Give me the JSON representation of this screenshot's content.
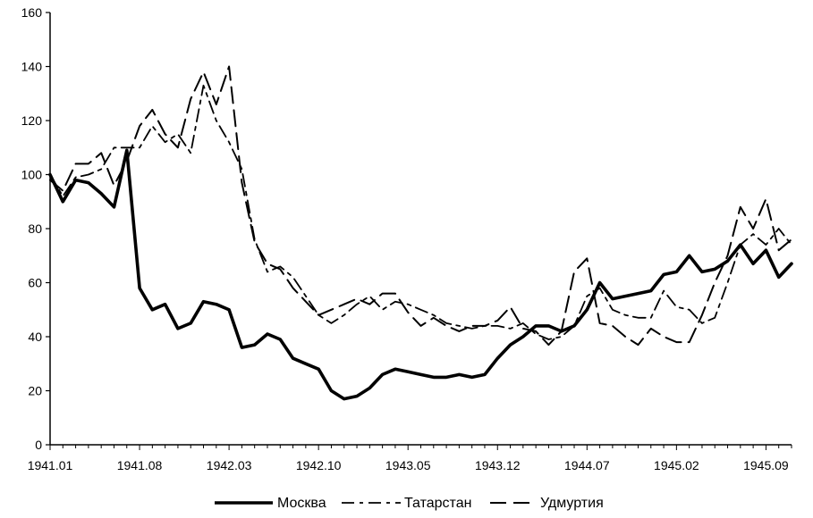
{
  "chart_data": {
    "type": "line",
    "title": "",
    "xlabel": "",
    "ylabel": "",
    "ylim": [
      0,
      160
    ],
    "yticks": [
      0,
      20,
      40,
      60,
      80,
      100,
      120,
      140,
      160
    ],
    "x": [
      "1941.01",
      "1941.02",
      "1941.03",
      "1941.04",
      "1941.05",
      "1941.06",
      "1941.07",
      "1941.08",
      "1941.09",
      "1941.10",
      "1941.11",
      "1941.12",
      "1942.01",
      "1942.02",
      "1942.03",
      "1942.04",
      "1942.05",
      "1942.06",
      "1942.07",
      "1942.08",
      "1942.09",
      "1942.10",
      "1942.11",
      "1942.12",
      "1943.01",
      "1943.02",
      "1943.03",
      "1943.04",
      "1943.05",
      "1943.06",
      "1943.07",
      "1943.08",
      "1943.09",
      "1943.10",
      "1943.11",
      "1943.12",
      "1944.01",
      "1944.02",
      "1944.03",
      "1944.04",
      "1944.05",
      "1944.06",
      "1944.07",
      "1944.08",
      "1944.09",
      "1944.10",
      "1944.11",
      "1944.12",
      "1945.01",
      "1945.02",
      "1945.03",
      "1945.04",
      "1945.05",
      "1945.06",
      "1945.07",
      "1945.08",
      "1945.09",
      "1945.10",
      "1945.11"
    ],
    "x_tick_labels": [
      "1941.01",
      "1941.08",
      "1942.03",
      "1942.10",
      "1943.05",
      "1943.12",
      "1944.07",
      "1945.02",
      "1945.09"
    ],
    "series": [
      {
        "name": "Москва",
        "style": "solid",
        "values": [
          100,
          90,
          98,
          97,
          93,
          88,
          109,
          58,
          50,
          52,
          43,
          45,
          53,
          52,
          50,
          36,
          37,
          41,
          39,
          32,
          30,
          28,
          20,
          17,
          18,
          21,
          26,
          28,
          27,
          26,
          25,
          25,
          26,
          25,
          26,
          32,
          37,
          40,
          44,
          44,
          42,
          44,
          50,
          60,
          54,
          55,
          56,
          57,
          63,
          64,
          70,
          64,
          65,
          68,
          74,
          67,
          72,
          62,
          67
        ]
      },
      {
        "name": "Татарстан",
        "style": "dash-dot",
        "values": [
          100,
          92,
          99,
          100,
          102,
          110,
          110,
          110,
          118,
          112,
          115,
          108,
          133,
          120,
          112,
          102,
          76,
          64,
          66,
          62,
          55,
          48,
          45,
          48,
          52,
          55,
          50,
          53,
          52,
          50,
          48,
          45,
          44,
          43,
          44,
          44,
          43,
          45,
          41,
          39,
          40,
          44,
          55,
          58,
          50,
          48,
          47,
          47,
          57,
          51,
          50,
          45,
          47,
          60,
          74,
          78,
          74,
          80,
          74
        ]
      },
      {
        "name": "Удмуртия",
        "style": "dashed",
        "values": [
          98,
          94,
          104,
          104,
          108,
          96,
          105,
          118,
          124,
          115,
          110,
          128,
          138,
          126,
          140,
          97,
          75,
          67,
          65,
          58,
          53,
          48,
          50,
          52,
          54,
          52,
          56,
          56,
          49,
          44,
          47,
          44,
          42,
          44,
          44,
          46,
          51,
          43,
          42,
          37,
          42,
          64,
          69,
          45,
          44,
          40,
          37,
          43,
          40,
          38,
          38,
          48,
          60,
          70,
          88,
          80,
          91,
          72,
          76
        ]
      }
    ],
    "legend": {
      "placement": "bottom-center",
      "items": [
        "Москва",
        "Татарстан",
        "Удмуртия"
      ]
    },
    "grid": false,
    "colors": {
      "line": "#000000",
      "axis": "#000000",
      "background": "#ffffff"
    }
  }
}
